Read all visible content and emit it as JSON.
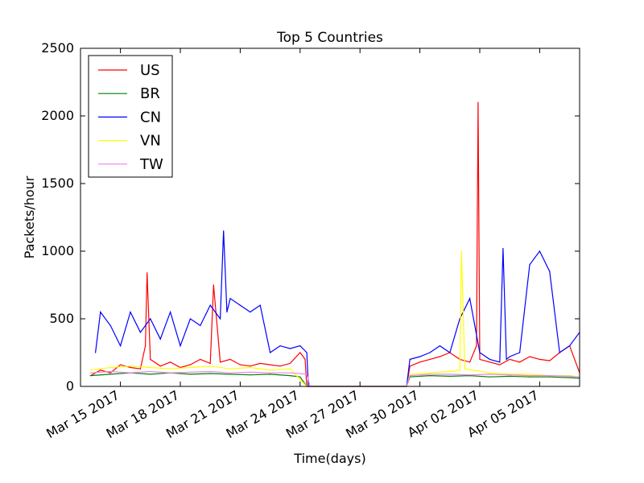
{
  "chart_data": {
    "type": "line",
    "title": "Top 5 Countries",
    "xlabel": "Time(days)",
    "ylabel": "Packets/hour",
    "xlim": [
      "2017-03-13",
      "2017-04-07"
    ],
    "ylim": [
      0,
      2500
    ],
    "yticks": [
      0,
      500,
      1000,
      1500,
      2000,
      2500
    ],
    "xticks": [
      {
        "date": "2017-03-15",
        "label": "Mar 15 2017"
      },
      {
        "date": "2017-03-18",
        "label": "Mar 18 2017"
      },
      {
        "date": "2017-03-21",
        "label": "Mar 21 2017"
      },
      {
        "date": "2017-03-24",
        "label": "Mar 24 2017"
      },
      {
        "date": "2017-03-27",
        "label": "Mar 27 2017"
      },
      {
        "date": "2017-03-30",
        "label": "Mar 30 2017"
      },
      {
        "date": "2017-04-02",
        "label": "Apr 02 2017"
      },
      {
        "date": "2017-04-05",
        "label": "Apr 05 2017"
      }
    ],
    "grid": false,
    "legend_position": "top-left",
    "series": [
      {
        "name": "US",
        "color": "#ff0000",
        "x": [
          "2017-03-13T12:00",
          "2017-03-14T00:00",
          "2017-03-14T12:00",
          "2017-03-15T00:00",
          "2017-03-15T12:00",
          "2017-03-16T00:00",
          "2017-03-16T06:00",
          "2017-03-16T08:00",
          "2017-03-16T12:00",
          "2017-03-17T00:00",
          "2017-03-17T12:00",
          "2017-03-18T00:00",
          "2017-03-18T12:00",
          "2017-03-19T00:00",
          "2017-03-19T12:00",
          "2017-03-19T16:00",
          "2017-03-20T00:00",
          "2017-03-20T12:00",
          "2017-03-21T00:00",
          "2017-03-21T12:00",
          "2017-03-22T00:00",
          "2017-03-22T12:00",
          "2017-03-23T00:00",
          "2017-03-23T12:00",
          "2017-03-24T00:00",
          "2017-03-24T06:00",
          "2017-03-24T08:00",
          "2017-03-24T12:00",
          "2017-03-29T08:00",
          "2017-03-29T12:00",
          "2017-03-30T00:00",
          "2017-03-30T12:00",
          "2017-03-31T00:00",
          "2017-03-31T12:00",
          "2017-04-01T00:00",
          "2017-04-01T12:00",
          "2017-04-01T20:00",
          "2017-04-01T22:00",
          "2017-04-02T00:00",
          "2017-04-02T12:00",
          "2017-04-03T00:00",
          "2017-04-03T12:00",
          "2017-04-04T00:00",
          "2017-04-04T12:00",
          "2017-04-05T00:00",
          "2017-04-05T12:00",
          "2017-04-06T00:00",
          "2017-04-06T12:00",
          "2017-04-07T00:00"
        ],
        "y": [
          80,
          120,
          100,
          160,
          140,
          130,
          300,
          840,
          200,
          150,
          180,
          140,
          160,
          200,
          170,
          750,
          180,
          200,
          160,
          150,
          170,
          160,
          150,
          170,
          250,
          200,
          0,
          0,
          0,
          150,
          180,
          200,
          220,
          250,
          200,
          180,
          300,
          2100,
          200,
          180,
          160,
          200,
          180,
          220,
          200,
          190,
          250,
          300,
          100
        ]
      },
      {
        "name": "BR",
        "color": "#008000",
        "x": [
          "2017-03-13T12:00",
          "2017-03-14T12:00",
          "2017-03-15T12:00",
          "2017-03-16T12:00",
          "2017-03-17T12:00",
          "2017-03-18T12:00",
          "2017-03-19T12:00",
          "2017-03-20T12:00",
          "2017-03-21T12:00",
          "2017-03-22T12:00",
          "2017-03-23T12:00",
          "2017-03-24T00:00",
          "2017-03-24T08:00",
          "2017-03-24T12:00",
          "2017-03-29T08:00",
          "2017-03-29T12:00",
          "2017-03-30T12:00",
          "2017-03-31T12:00",
          "2017-04-01T12:00",
          "2017-04-02T12:00",
          "2017-04-03T12:00",
          "2017-04-04T12:00",
          "2017-04-05T12:00",
          "2017-04-06T12:00",
          "2017-04-07T00:00"
        ],
        "y": [
          80,
          90,
          100,
          90,
          100,
          90,
          95,
          90,
          85,
          90,
          80,
          70,
          0,
          0,
          0,
          70,
          80,
          75,
          80,
          70,
          75,
          70,
          70,
          65,
          60
        ]
      },
      {
        "name": "CN",
        "color": "#0000ff",
        "x": [
          "2017-03-13T18:00",
          "2017-03-14T00:00",
          "2017-03-14T12:00",
          "2017-03-15T00:00",
          "2017-03-15T12:00",
          "2017-03-16T00:00",
          "2017-03-16T12:00",
          "2017-03-17T00:00",
          "2017-03-17T12:00",
          "2017-03-18T00:00",
          "2017-03-18T12:00",
          "2017-03-19T00:00",
          "2017-03-19T12:00",
          "2017-03-20T00:00",
          "2017-03-20T04:00",
          "2017-03-20T08:00",
          "2017-03-20T12:00",
          "2017-03-21T00:00",
          "2017-03-21T12:00",
          "2017-03-22T00:00",
          "2017-03-22T12:00",
          "2017-03-23T00:00",
          "2017-03-23T12:00",
          "2017-03-24T00:00",
          "2017-03-24T08:00",
          "2017-03-24T10:00",
          "2017-03-24T12:00",
          "2017-03-29T08:00",
          "2017-03-29T12:00",
          "2017-03-30T00:00",
          "2017-03-30T12:00",
          "2017-03-31T00:00",
          "2017-03-31T12:00",
          "2017-04-01T00:00",
          "2017-04-01T12:00",
          "2017-04-02T00:00",
          "2017-04-02T12:00",
          "2017-04-03T00:00",
          "2017-04-03T04:00",
          "2017-04-03T08:00",
          "2017-04-03T12:00",
          "2017-04-04T00:00",
          "2017-04-04T12:00",
          "2017-04-05T00:00",
          "2017-04-05T12:00",
          "2017-04-06T00:00",
          "2017-04-06T12:00",
          "2017-04-07T00:00"
        ],
        "y": [
          250,
          550,
          450,
          300,
          550,
          400,
          500,
          350,
          550,
          300,
          500,
          450,
          600,
          500,
          1150,
          550,
          650,
          600,
          550,
          600,
          250,
          300,
          280,
          300,
          250,
          0,
          0,
          0,
          200,
          220,
          250,
          300,
          250,
          500,
          650,
          250,
          200,
          180,
          1020,
          200,
          220,
          250,
          900,
          1000,
          850,
          250,
          300,
          400
        ]
      },
      {
        "name": "VN",
        "color": "#ffff00",
        "x": [
          "2017-03-13T12:00",
          "2017-03-14T12:00",
          "2017-03-15T12:00",
          "2017-03-16T12:00",
          "2017-03-17T12:00",
          "2017-03-18T12:00",
          "2017-03-19T12:00",
          "2017-03-20T12:00",
          "2017-03-21T12:00",
          "2017-03-22T12:00",
          "2017-03-23T12:00",
          "2017-03-24T08:00",
          "2017-03-24T12:00",
          "2017-03-29T08:00",
          "2017-03-29T12:00",
          "2017-03-30T12:00",
          "2017-03-31T12:00",
          "2017-04-01T00:00",
          "2017-04-01T02:00",
          "2017-04-01T06:00",
          "2017-04-02T12:00",
          "2017-04-03T12:00",
          "2017-04-04T12:00",
          "2017-04-05T12:00",
          "2017-04-06T12:00",
          "2017-04-07T00:00"
        ],
        "y": [
          120,
          140,
          150,
          140,
          130,
          140,
          150,
          130,
          140,
          120,
          130,
          0,
          0,
          0,
          90,
          100,
          110,
          120,
          1000,
          130,
          100,
          90,
          90,
          80,
          80,
          70
        ]
      },
      {
        "name": "TW",
        "color": "#ee82ee",
        "x": [
          "2017-03-13T12:00",
          "2017-03-14T12:00",
          "2017-03-15T12:00",
          "2017-03-16T12:00",
          "2017-03-17T12:00",
          "2017-03-18T12:00",
          "2017-03-19T12:00",
          "2017-03-20T12:00",
          "2017-03-21T12:00",
          "2017-03-22T12:00",
          "2017-03-23T12:00",
          "2017-03-24T08:00",
          "2017-03-24T12:00",
          "2017-03-29T08:00",
          "2017-03-29T12:00",
          "2017-03-30T12:00",
          "2017-03-31T12:00",
          "2017-04-01T12:00",
          "2017-04-02T12:00",
          "2017-04-03T12:00",
          "2017-04-04T12:00",
          "2017-04-05T12:00",
          "2017-04-06T12:00",
          "2017-04-07T00:00"
        ],
        "y": [
          100,
          110,
          100,
          110,
          100,
          105,
          110,
          100,
          105,
          100,
          100,
          90,
          0,
          0,
          80,
          90,
          90,
          85,
          90,
          85,
          80,
          80,
          75,
          70
        ]
      }
    ]
  }
}
